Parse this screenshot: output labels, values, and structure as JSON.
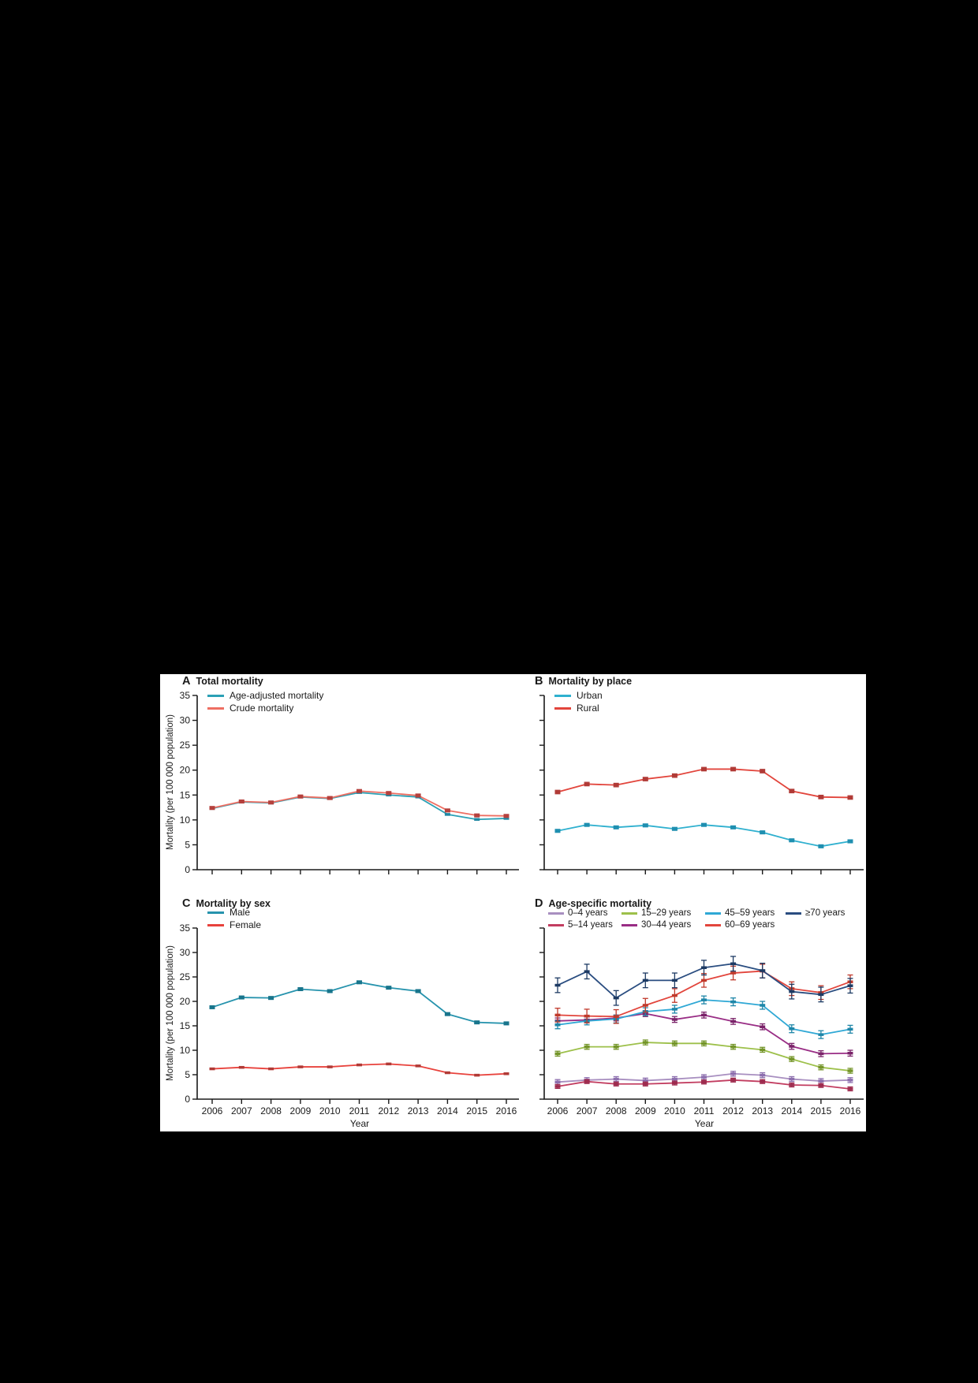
{
  "figure": {
    "background": "#ffffff",
    "page_background": "#000000",
    "axis_color": "#1a1a1a",
    "years": [
      2006,
      2007,
      2008,
      2009,
      2010,
      2011,
      2012,
      2013,
      2014,
      2015,
      2016
    ],
    "y_ticks": [
      0,
      5,
      10,
      15,
      20,
      25,
      30,
      35
    ],
    "ylabel": "Mortality (per 100 000 population)",
    "xlabel": "Year"
  },
  "chart_data": [
    {
      "type": "line",
      "panel": "A",
      "letter": "A",
      "title": "Total mortality",
      "x": [
        2006,
        2007,
        2008,
        2009,
        2010,
        2011,
        2012,
        2013,
        2014,
        2015,
        2016
      ],
      "ylim": [
        0,
        35
      ],
      "y_ticks": [
        0,
        5,
        10,
        15,
        20,
        25,
        30,
        35
      ],
      "ylabel": "Mortality (per 100 000 population)",
      "xlabel": "Year",
      "legend_position": "top-left",
      "grid": false,
      "series": [
        {
          "name": "Age-adjusted mortality",
          "color": "#2BA0B5",
          "marker_color": "#1F87A3",
          "err": 0.25,
          "values": [
            12.3,
            13.6,
            13.4,
            14.6,
            14.3,
            15.5,
            15.0,
            14.6,
            11.1,
            10.1,
            10.3
          ]
        },
        {
          "name": "Crude mortality",
          "color": "#EE6F63",
          "marker_color": "#B5413D",
          "err": 0.3,
          "values": [
            12.4,
            13.7,
            13.5,
            14.7,
            14.4,
            15.8,
            15.4,
            14.9,
            11.9,
            10.9,
            10.8
          ]
        }
      ]
    },
    {
      "type": "line",
      "panel": "B",
      "letter": "B",
      "title": "Mortality by place",
      "x": [
        2006,
        2007,
        2008,
        2009,
        2010,
        2011,
        2012,
        2013,
        2014,
        2015,
        2016
      ],
      "ylim": [
        0,
        35
      ],
      "y_ticks": [
        0,
        5,
        10,
        15,
        20,
        25,
        30,
        35
      ],
      "ylabel": "",
      "xlabel": "Year",
      "legend_position": "top-left",
      "grid": false,
      "series": [
        {
          "name": "Urban",
          "color": "#2FB0CF",
          "marker_color": "#1F8FB0",
          "err": 0.3,
          "values": [
            7.8,
            9.0,
            8.5,
            8.9,
            8.2,
            9.0,
            8.5,
            7.5,
            5.9,
            4.7,
            5.7
          ]
        },
        {
          "name": "Rural",
          "color": "#E2453C",
          "marker_color": "#B03A36",
          "err": 0.35,
          "values": [
            15.6,
            17.2,
            17.0,
            18.2,
            18.9,
            20.2,
            20.2,
            19.8,
            15.8,
            14.6,
            14.5
          ]
        }
      ]
    },
    {
      "type": "line",
      "panel": "C",
      "letter": "C",
      "title": "Mortality by sex",
      "x": [
        2006,
        2007,
        2008,
        2009,
        2010,
        2011,
        2012,
        2013,
        2014,
        2015,
        2016
      ],
      "ylim": [
        0,
        35
      ],
      "y_ticks": [
        0,
        5,
        10,
        15,
        20,
        25,
        30,
        35
      ],
      "ylabel": "Mortality (per 100 000 population)",
      "xlabel": "Year",
      "legend_position": "top-left",
      "grid": false,
      "series": [
        {
          "name": "Male",
          "color": "#2693AD",
          "marker_color": "#19758C",
          "err": 0.3,
          "values": [
            18.8,
            20.8,
            20.7,
            22.5,
            22.1,
            23.9,
            22.8,
            22.1,
            17.4,
            15.7,
            15.5
          ]
        },
        {
          "name": "Female",
          "color": "#E8423C",
          "marker_color": "#B03A36",
          "err": 0.25,
          "values": [
            6.2,
            6.5,
            6.2,
            6.6,
            6.6,
            7.0,
            7.2,
            6.8,
            5.4,
            4.9,
            5.2
          ]
        }
      ]
    },
    {
      "type": "line",
      "panel": "D",
      "letter": "D",
      "title": "Age-specific mortality",
      "x": [
        2006,
        2007,
        2008,
        2009,
        2010,
        2011,
        2012,
        2013,
        2014,
        2015,
        2016
      ],
      "ylim": [
        0,
        35
      ],
      "y_ticks": [
        0,
        5,
        10,
        15,
        20,
        25,
        30,
        35
      ],
      "ylabel": "",
      "xlabel": "Year",
      "legend_position": "top-grid",
      "grid": false,
      "series": [
        {
          "name": "0–4 years",
          "color": "#A88FC0",
          "marker_color": "#8D6FAE",
          "err": 0.5,
          "values": [
            3.5,
            3.9,
            4.1,
            3.8,
            4.1,
            4.5,
            5.2,
            4.9,
            4.1,
            3.7,
            3.9
          ]
        },
        {
          "name": "5–14 years",
          "color": "#C23D60",
          "marker_color": "#9E2B4E",
          "err": 0.4,
          "values": [
            2.6,
            3.6,
            3.1,
            3.1,
            3.3,
            3.5,
            3.9,
            3.6,
            2.9,
            2.8,
            2.1
          ]
        },
        {
          "name": "15–29 years",
          "color": "#9DC04A",
          "marker_color": "#739428",
          "err": 0.5,
          "values": [
            9.3,
            10.7,
            10.7,
            11.6,
            11.4,
            11.4,
            10.7,
            10.1,
            8.2,
            6.5,
            5.8
          ]
        },
        {
          "name": "30–44 years",
          "color": "#992D85",
          "marker_color": "#7A2369",
          "err": 0.6,
          "values": [
            16.0,
            16.2,
            16.6,
            17.5,
            16.3,
            17.2,
            15.9,
            14.8,
            10.8,
            9.3,
            9.4
          ]
        },
        {
          "name": "45–59 years",
          "color": "#2FA8D5",
          "marker_color": "#1F86A8",
          "err": 0.8,
          "values": [
            15.2,
            16.0,
            16.4,
            17.9,
            18.4,
            20.3,
            19.9,
            19.2,
            14.4,
            13.2,
            14.3
          ]
        },
        {
          "name": "60–69 years",
          "color": "#E2453C",
          "marker_color": "#C0392B",
          "err": 1.4,
          "values": [
            17.2,
            17.0,
            16.9,
            19.2,
            21.2,
            24.3,
            25.8,
            26.2,
            22.6,
            21.8,
            24.0
          ]
        },
        {
          "name": "≥70 years",
          "color": "#2A4D80",
          "marker_color": "#1D3A63",
          "err": 1.5,
          "values": [
            23.3,
            26.1,
            20.7,
            24.3,
            24.3,
            26.9,
            27.7,
            26.3,
            22.0,
            21.4,
            23.2
          ]
        }
      ]
    }
  ]
}
